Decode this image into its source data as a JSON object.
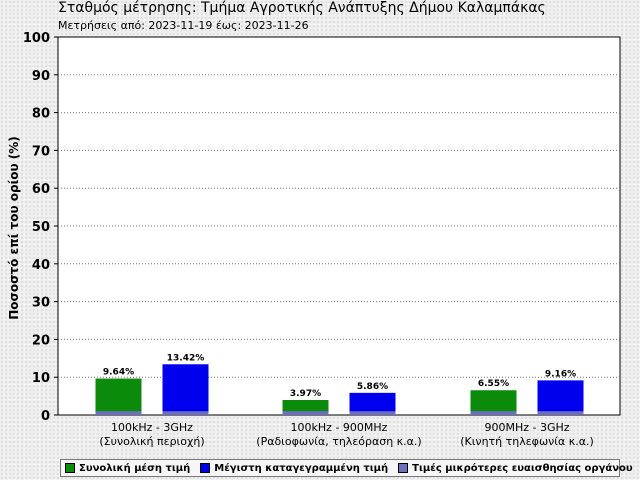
{
  "title": "Σταθμός μέτρησης: Τμήμα Αγροτικής Ανάπτυξης Δήμου Καλαμπάκας",
  "subtitle": "Μετρήσεις από: 2023-11-19 έως: 2023-11-26",
  "colors": {
    "green": "#0b8a0b",
    "blue": "#0000ee",
    "purple": "#6e6ebe"
  },
  "chart_data": {
    "type": "bar",
    "title": "",
    "ylabel": "Ποσοστό επί του ορίου (%)",
    "xlabel": "",
    "ylim": [
      0,
      100
    ],
    "yticks": [
      0,
      10,
      20,
      30,
      40,
      50,
      60,
      70,
      80,
      90,
      100
    ],
    "grid": true,
    "legend_position": "bottom",
    "categories": [
      {
        "line1": "100kHz - 3GHz",
        "line2": "(Συνολική περιοχή)"
      },
      {
        "line1": "100kHz - 900MHz",
        "line2": "(Ραδιοφωνία, τηλεόραση κ.α.)"
      },
      {
        "line1": "900MHz - 3GHz",
        "line2": "(Κινητή τηλεφωνία κ.α.)"
      }
    ],
    "series": [
      {
        "name": "Συνολική μέση τιμή",
        "color": "#0b8a0b",
        "values": [
          9.64,
          3.97,
          6.55
        ],
        "labels": [
          "9.64%",
          "3.97%",
          "6.55%"
        ]
      },
      {
        "name": "Μέγιστη καταγεγραμμένη τιμή",
        "color": "#0000ee",
        "values": [
          13.42,
          5.86,
          9.16
        ],
        "labels": [
          "13.42%",
          "5.86%",
          "9.16%"
        ]
      },
      {
        "name": "Τιμές μικρότερες ευαισθησίας οργάνου",
        "color": "#6e6ebe",
        "values": [
          1,
          1,
          1
        ]
      }
    ]
  }
}
